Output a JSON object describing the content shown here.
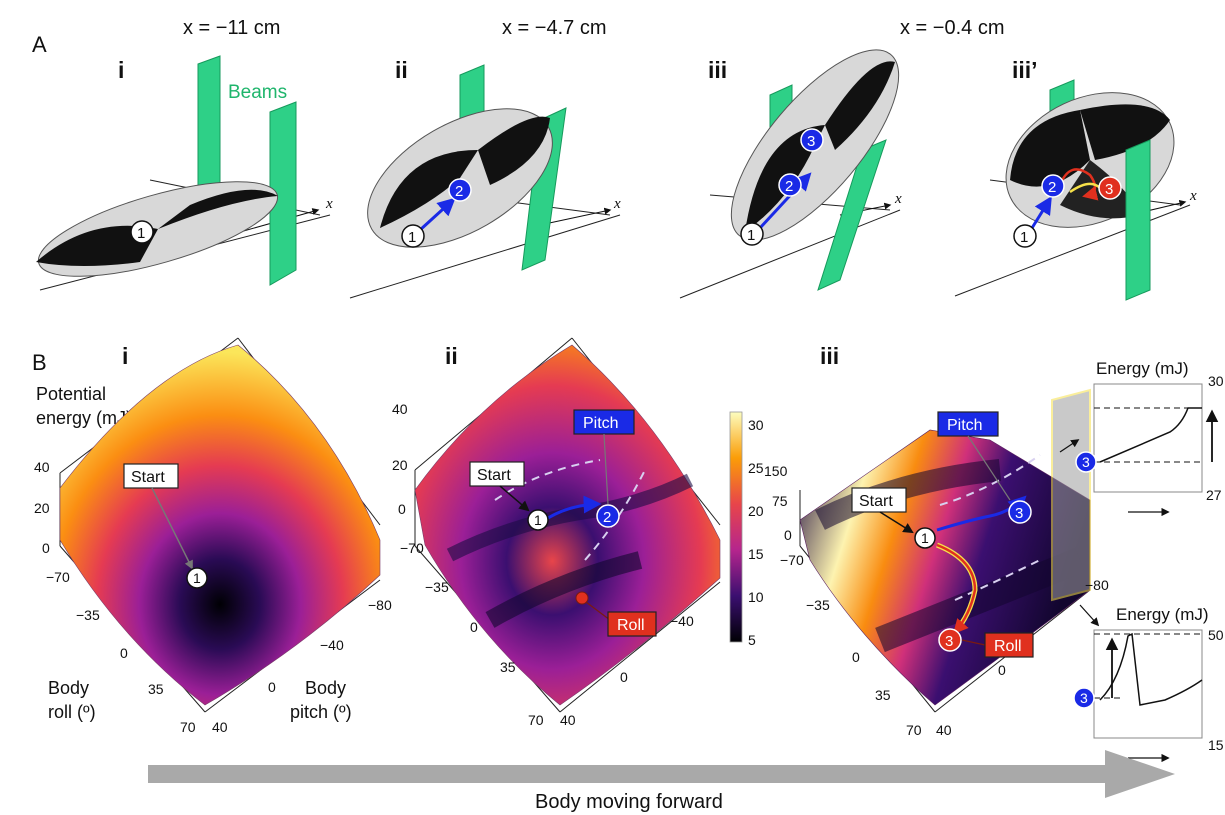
{
  "panel_labels": {
    "A": "A",
    "B": "B"
  },
  "positions": [
    "x = −11 cm",
    "x = −4.7 cm",
    "x = −0.4 cm"
  ],
  "row_a": {
    "subpanels": [
      "i",
      "ii",
      "iii",
      "iii’"
    ],
    "beams_label": "Beams",
    "axis_label": "x",
    "state_markers": [
      "1",
      "2",
      "3"
    ]
  },
  "row_b": {
    "subpanels": [
      "i",
      "ii",
      "iii"
    ],
    "z_axis_label_line1": "Potential",
    "z_axis_label_line2": "energy (mJ)",
    "roll_label_line1": "Body",
    "roll_label_line2": "roll (º)",
    "pitch_label_line1": "Body",
    "pitch_label_line2": "pitch (º)",
    "z_ticks": [
      "40",
      "20",
      "0"
    ],
    "z_ticks_iii": [
      "150",
      "75",
      "0"
    ],
    "roll_ticks": [
      "−70",
      "−35",
      "0",
      "35",
      "70"
    ],
    "pitch_ticks": [
      "−80",
      "−40",
      "0",
      "40"
    ],
    "start_label": "Start",
    "pitch_label": "Pitch",
    "roll_label": "Roll",
    "colorbar_ticks": [
      "30",
      "25",
      "20",
      "15",
      "10",
      "5"
    ],
    "inset_top": {
      "title": "Energy (mJ)",
      "max": "30",
      "min": "27",
      "marker": "3"
    },
    "inset_bottom": {
      "title": "Energy (mJ)",
      "max": "50",
      "min": "15",
      "marker": "3"
    }
  },
  "arrow_caption": "Body moving forward",
  "colors": {
    "beam": "#2ed087",
    "pitch_path": "#1a2ae6",
    "roll_path": "#e0301e",
    "arrow": "#a9a9a9"
  }
}
